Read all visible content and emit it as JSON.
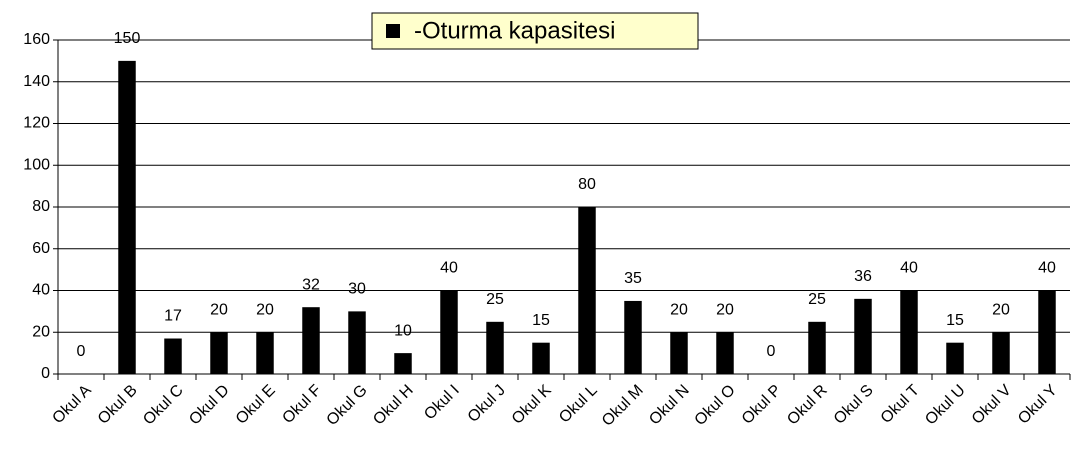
{
  "chart_data": {
    "type": "bar",
    "categories": [
      "Okul A",
      "Okul B",
      "Okul C",
      "Okul D",
      "Okul E",
      "Okul F",
      "Okul G",
      "Okul H",
      "Okul I",
      "Okul J",
      "Okul K",
      "Okul L",
      "Okul M",
      "Okul N",
      "Okul O",
      "Okul P",
      "Okul R",
      "Okul S",
      "Okul T",
      "Okul U",
      "Okul V",
      "Okul Y"
    ],
    "series": [
      {
        "name": "-Oturma kapasitesi",
        "color": "#000000",
        "values": [
          0,
          150,
          17,
          20,
          20,
          32,
          30,
          10,
          40,
          25,
          15,
          80,
          35,
          20,
          20,
          0,
          25,
          36,
          40,
          15,
          20,
          40
        ]
      }
    ],
    "ylim": [
      0,
      160
    ],
    "yticks": [
      0,
      20,
      40,
      60,
      80,
      100,
      120,
      140,
      160
    ],
    "grid": true,
    "legend": "top"
  }
}
